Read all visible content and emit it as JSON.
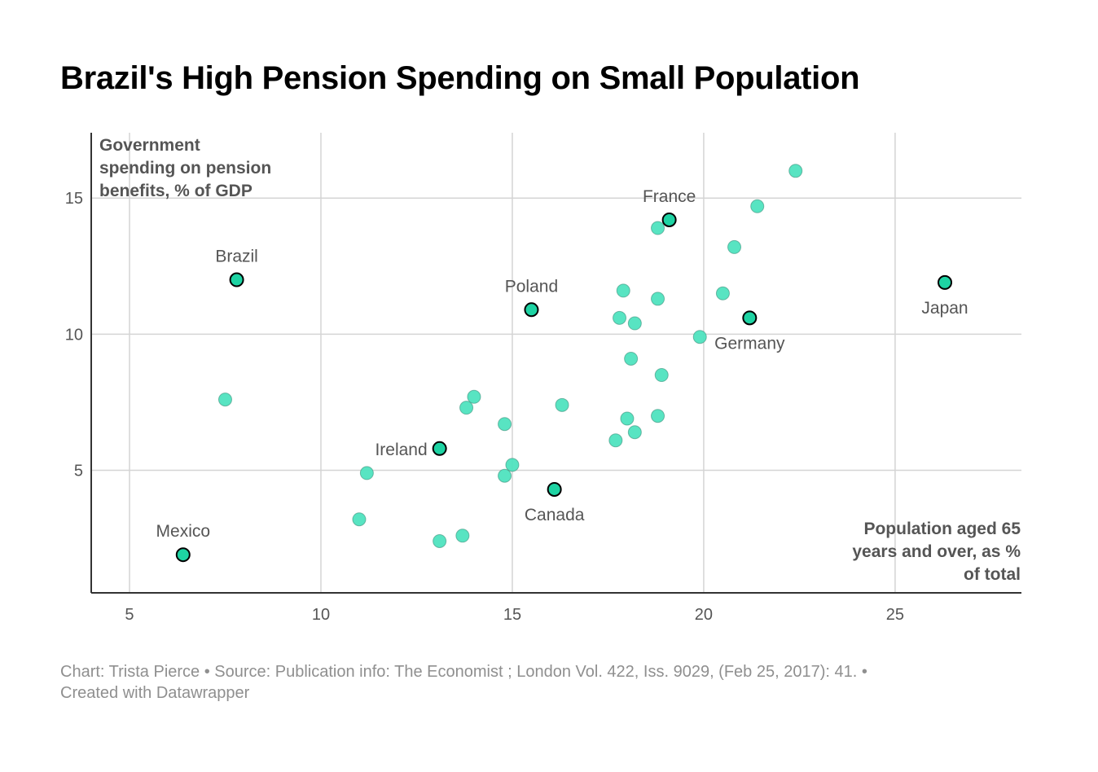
{
  "header": {
    "title": "Brazil's High Pension Spending on Small Population"
  },
  "footer": {
    "line1": "Chart: Trista Pierce • Source: Publication info: The Economist ; London Vol. 422, Iss. 9029, (Feb 25, 2017): 41. •",
    "line2": "Created with Datawrapper"
  },
  "chart_data": {
    "type": "scatter",
    "title": "Brazil's High Pension Spending on Small Population",
    "xlabel": "Population aged 65 years and over, as % of total",
    "ylabel": "Government spending on pension benefits, % of GDP",
    "ylabel_lines": [
      "Government",
      "spending on pension",
      "benefits, % of GDP"
    ],
    "xlabel_lines": [
      "Population aged 65",
      "years and over, as %",
      "of total"
    ],
    "xlim": [
      4.0,
      28.3
    ],
    "ylim": [
      0.5,
      17.4
    ],
    "xticks": [
      5,
      10,
      15,
      20,
      25
    ],
    "yticks": [
      5,
      10,
      15
    ],
    "grid": true,
    "colors": {
      "point": "#4fe3bf",
      "highlight": "#1ed3a3",
      "outline": "#000000",
      "grid": "#d4d4d4",
      "axis": "#333333"
    },
    "points": [
      {
        "x": 7.5,
        "y": 7.6
      },
      {
        "x": 11.0,
        "y": 3.2
      },
      {
        "x": 11.2,
        "y": 4.9
      },
      {
        "x": 13.1,
        "y": 2.4
      },
      {
        "x": 13.7,
        "y": 2.6
      },
      {
        "x": 13.8,
        "y": 7.3
      },
      {
        "x": 14.0,
        "y": 7.7
      },
      {
        "x": 14.8,
        "y": 6.7
      },
      {
        "x": 14.8,
        "y": 4.8
      },
      {
        "x": 15.0,
        "y": 5.2
      },
      {
        "x": 16.3,
        "y": 7.4
      },
      {
        "x": 17.7,
        "y": 6.1
      },
      {
        "x": 17.8,
        "y": 10.6
      },
      {
        "x": 17.9,
        "y": 11.6
      },
      {
        "x": 18.0,
        "y": 6.9
      },
      {
        "x": 18.1,
        "y": 9.1
      },
      {
        "x": 18.2,
        "y": 6.4
      },
      {
        "x": 18.2,
        "y": 10.4
      },
      {
        "x": 18.8,
        "y": 7.0
      },
      {
        "x": 18.8,
        "y": 11.3
      },
      {
        "x": 18.8,
        "y": 13.9
      },
      {
        "x": 18.9,
        "y": 8.5
      },
      {
        "x": 19.9,
        "y": 9.9
      },
      {
        "x": 20.5,
        "y": 11.5
      },
      {
        "x": 20.8,
        "y": 13.2
      },
      {
        "x": 21.4,
        "y": 14.7
      },
      {
        "x": 22.4,
        "y": 16.0
      }
    ],
    "highlights": [
      {
        "name": "Brazil",
        "x": 7.8,
        "y": 12.0,
        "label_pos": "above"
      },
      {
        "name": "Mexico",
        "x": 6.4,
        "y": 1.9,
        "label_pos": "above"
      },
      {
        "name": "Ireland",
        "x": 13.1,
        "y": 5.8,
        "label_pos": "left"
      },
      {
        "name": "Poland",
        "x": 15.5,
        "y": 10.9,
        "label_pos": "above"
      },
      {
        "name": "Canada",
        "x": 16.1,
        "y": 4.3,
        "label_pos": "below"
      },
      {
        "name": "France",
        "x": 19.1,
        "y": 14.2,
        "label_pos": "above"
      },
      {
        "name": "Germany",
        "x": 21.2,
        "y": 10.6,
        "label_pos": "below"
      },
      {
        "name": "Japan",
        "x": 26.3,
        "y": 11.9,
        "label_pos": "below"
      }
    ]
  }
}
